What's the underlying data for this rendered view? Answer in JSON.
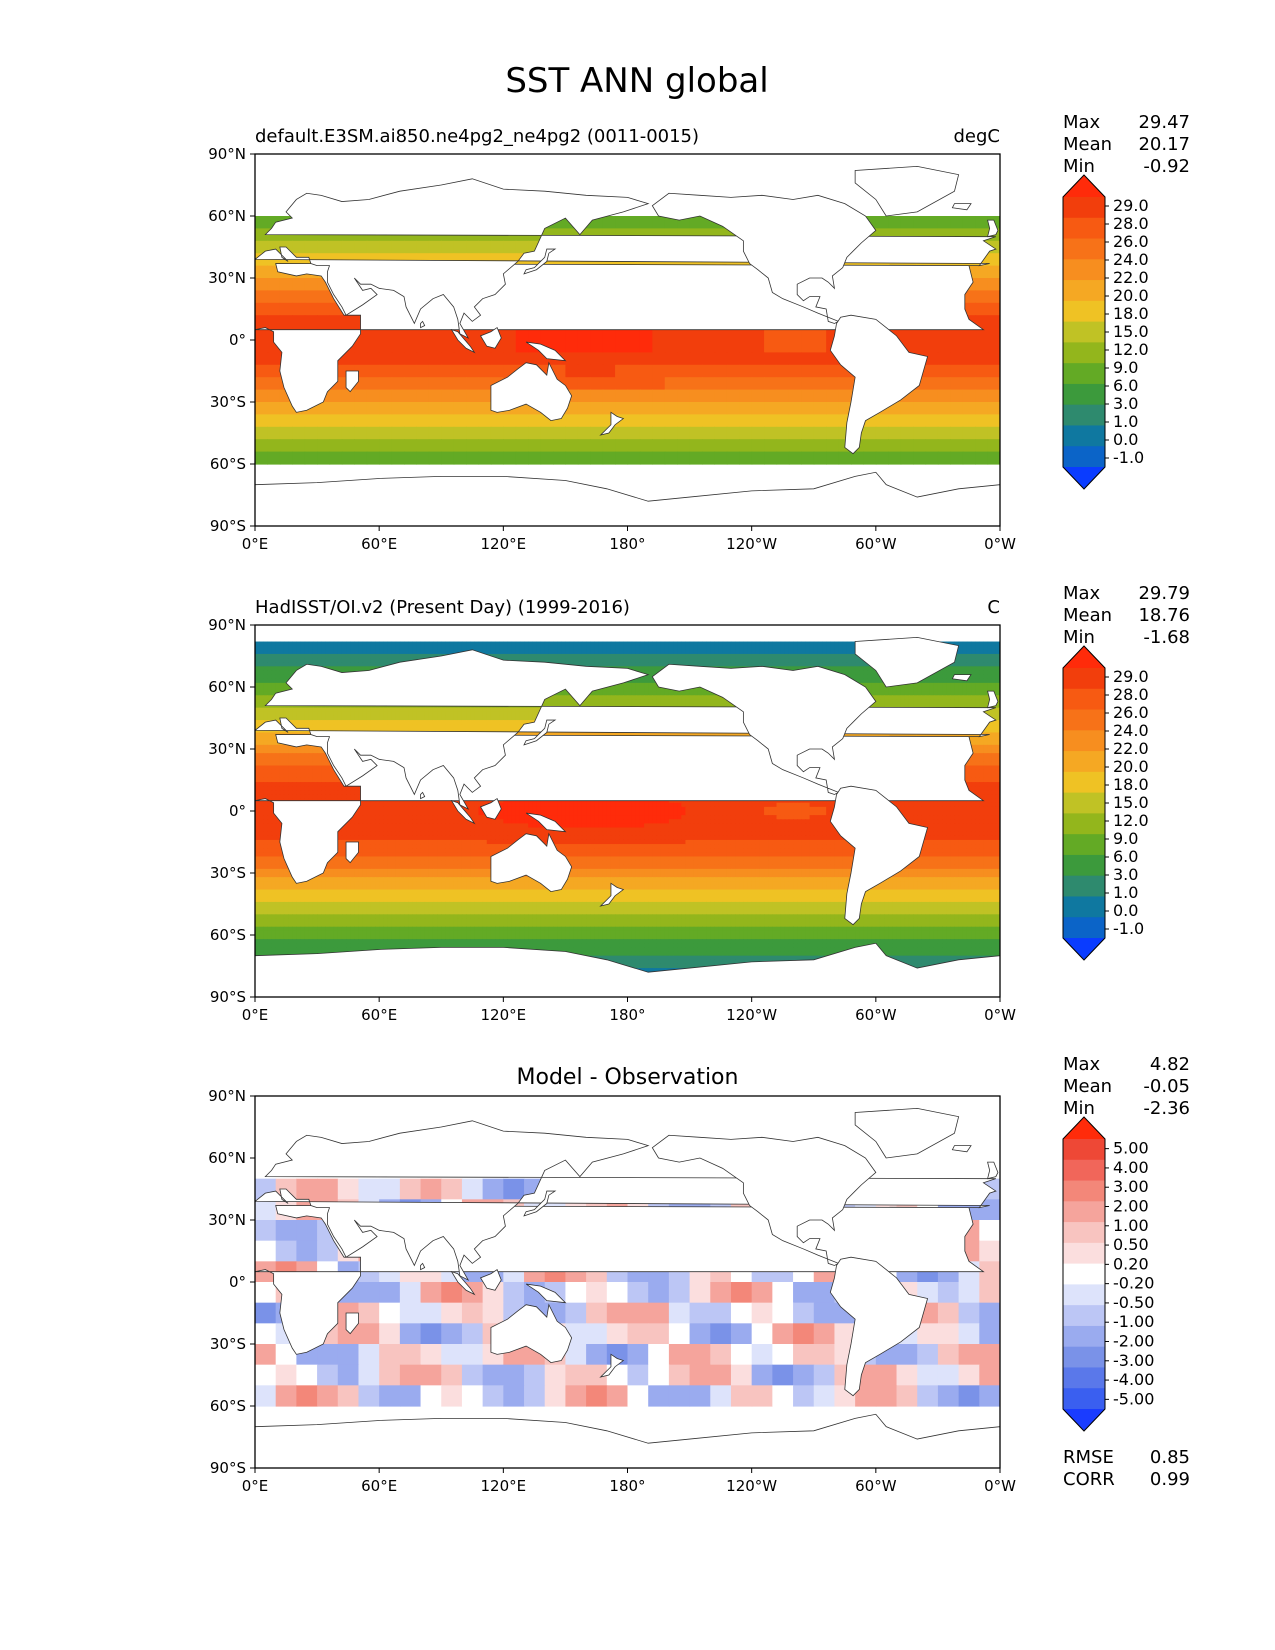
{
  "figure": {
    "title": "SST ANN global"
  },
  "axes": {
    "lat_ticks": [
      "90°N",
      "60°N",
      "30°N",
      "0°",
      "30°S",
      "60°S",
      "90°S"
    ],
    "lon_ticks": [
      "0°E",
      "60°E",
      "120°E",
      "180°",
      "120°W",
      "60°W",
      "0°W"
    ]
  },
  "colors": {
    "abs_levels": [
      "#0a3cff",
      "#0b64c8",
      "#0f78a0",
      "#2e8a6e",
      "#3c9a3c",
      "#63aa25",
      "#93b61c",
      "#c0c225",
      "#efc224",
      "#f5a823",
      "#f78e1f",
      "#f77218",
      "#f75a12",
      "#f23e0c",
      "#ff2b0a"
    ],
    "diff_levels": [
      "#1a3cff",
      "#3a5ff0",
      "#5a78ea",
      "#7a92e8",
      "#9aabef",
      "#bcc6f5",
      "#dde3fb",
      "#ffffff",
      "#fbdede",
      "#f8c4c0",
      "#f5a49c",
      "#f38779",
      "#f1665a",
      "#ee4836",
      "#ff2b0a"
    ],
    "map_boundary": "#000000",
    "land": "#ffffff",
    "coast": "#333333"
  },
  "panels": [
    {
      "id": "model",
      "title_left": "default.E3SM.ai850.ne4pg2_ne4pg2 (0011-0015)",
      "title_center": "",
      "units": "degC",
      "stats": {
        "labels": [
          "Max",
          "Mean",
          "Min"
        ],
        "values": [
          "29.47",
          "20.17",
          "-0.92"
        ]
      },
      "colorbar": [
        "29.0",
        "28.0",
        "26.0",
        "24.0",
        "22.0",
        "20.0",
        "18.0",
        "15.0",
        "12.0",
        "9.0",
        "6.0",
        "3.0",
        "1.0",
        "0.0",
        "-1.0"
      ]
    },
    {
      "id": "obs",
      "title_left": "HadISST/OI.v2 (Present Day) (1999-2016)",
      "title_center": "",
      "units": "C",
      "stats": {
        "labels": [
          "Max",
          "Mean",
          "Min"
        ],
        "values": [
          "29.79",
          "18.76",
          "-1.68"
        ]
      },
      "colorbar": [
        "29.0",
        "28.0",
        "26.0",
        "24.0",
        "22.0",
        "20.0",
        "18.0",
        "15.0",
        "12.0",
        "9.0",
        "6.0",
        "3.0",
        "1.0",
        "0.0",
        "-1.0"
      ]
    },
    {
      "id": "diff",
      "title_left": "",
      "title_center": "Model - Observation",
      "units": "",
      "stats": {
        "labels": [
          "Max",
          "Mean",
          "Min"
        ],
        "values": [
          "4.82",
          "-0.05",
          "-2.36"
        ]
      },
      "colorbar": [
        "5.00",
        "4.00",
        "3.00",
        "2.00",
        "1.00",
        "0.50",
        "0.20",
        "-0.20",
        "-0.50",
        "-1.00",
        "-2.00",
        "-3.00",
        "-4.00",
        "-5.00"
      ],
      "metrics": {
        "labels": [
          "RMSE",
          "CORR"
        ],
        "values": [
          "0.85",
          "0.99"
        ]
      }
    }
  ],
  "chart_data": [
    {
      "type": "heatmap",
      "title": "default.E3SM.ai850.ne4pg2_ne4pg2 (0011-0015)",
      "units": "degC",
      "x": "longitude",
      "y": "latitude",
      "xlim": [
        0,
        360
      ],
      "ylim": [
        -90,
        90
      ],
      "levels": [
        -1.0,
        0.0,
        1.0,
        3.0,
        6.0,
        9.0,
        12.0,
        15.0,
        18.0,
        20.0,
        22.0,
        24.0,
        26.0,
        28.0,
        29.0
      ],
      "max": 29.47,
      "mean": 20.17,
      "min": -0.92,
      "ocean_coverage_lat": [
        -60,
        60
      ]
    },
    {
      "type": "heatmap",
      "title": "HadISST/OI.v2 (Present Day) (1999-2016)",
      "units": "C",
      "x": "longitude",
      "y": "latitude",
      "xlim": [
        0,
        360
      ],
      "ylim": [
        -90,
        90
      ],
      "levels": [
        -1.0,
        0.0,
        1.0,
        3.0,
        6.0,
        9.0,
        12.0,
        15.0,
        18.0,
        20.0,
        22.0,
        24.0,
        26.0,
        28.0,
        29.0
      ],
      "max": 29.79,
      "mean": 18.76,
      "min": -1.68,
      "ocean_coverage_lat": [
        -78,
        82
      ]
    },
    {
      "type": "heatmap",
      "title": "Model - Observation",
      "x": "longitude",
      "y": "latitude",
      "xlim": [
        0,
        360
      ],
      "ylim": [
        -90,
        90
      ],
      "levels": [
        -5.0,
        -4.0,
        -3.0,
        -2.0,
        -1.0,
        -0.5,
        -0.2,
        0.2,
        0.5,
        1.0,
        2.0,
        3.0,
        4.0,
        5.0
      ],
      "max": 4.82,
      "mean": -0.05,
      "min": -2.36,
      "rmse": 0.85,
      "corr": 0.99
    }
  ]
}
